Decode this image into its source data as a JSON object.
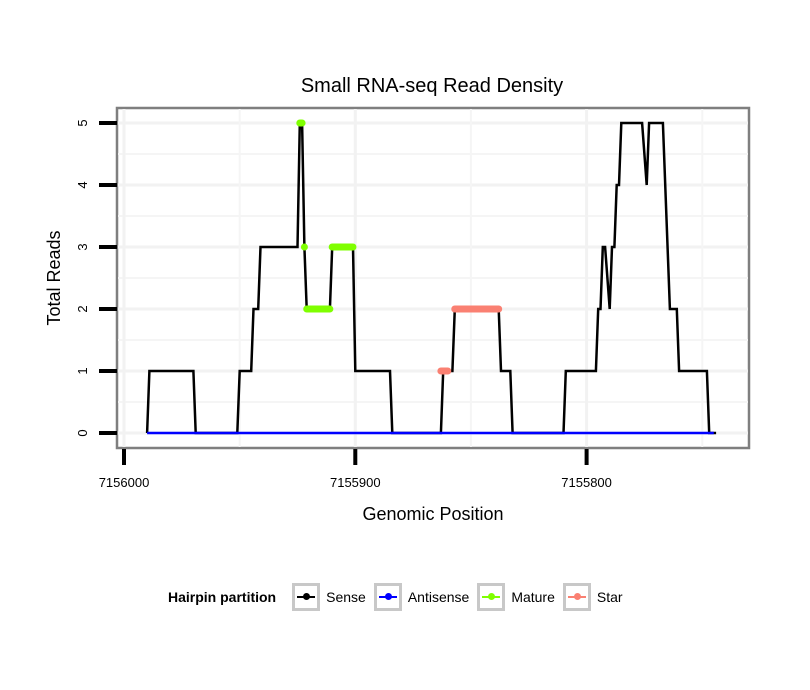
{
  "chart_data": {
    "type": "line",
    "title": "Small RNA-seq Read Density",
    "xlabel": "Genomic Position",
    "ylabel": "Total Reads",
    "x_reversed": true,
    "xlim": [
      7156003,
      7155728
    ],
    "ylim": [
      -0.2,
      5.2
    ],
    "xticks": [
      7156000,
      7155900,
      7155800
    ],
    "xtick_labels": [
      "7156000",
      "7155900",
      "7155800"
    ],
    "yticks": [
      0,
      1,
      2,
      3,
      4,
      5
    ],
    "ytick_labels": [
      "0",
      "1",
      "2",
      "3",
      "4",
      "5"
    ],
    "grid": true,
    "legend": {
      "title": "Hairpin partition",
      "placement": "bottom",
      "entries": [
        {
          "name": "Sense",
          "color": "#000000"
        },
        {
          "name": "Antisense",
          "color": "#0000ff"
        },
        {
          "name": "Mature",
          "color": "#7fff00"
        },
        {
          "name": "Star",
          "color": "#fa8072"
        }
      ]
    },
    "series": [
      {
        "name": "Sense",
        "color": "#000000",
        "x": [
          7155990,
          7155989,
          7155970,
          7155969,
          7155951,
          7155950,
          7155945,
          7155944,
          7155942,
          7155941,
          7155925,
          7155924,
          7155923,
          7155922,
          7155921,
          7155911,
          7155910,
          7155901,
          7155900,
          7155885,
          7155884,
          7155863,
          7155862,
          7155858,
          7155857,
          7155838,
          7155837,
          7155833,
          7155832,
          7155810,
          7155809,
          7155796,
          7155795,
          7155794,
          7155793,
          7155792,
          7155790,
          7155789,
          7155788,
          7155787,
          7155786,
          7155785,
          7155776,
          7155774,
          7155773,
          7155767,
          7155764,
          7155761,
          7155760,
          7155748,
          7155747,
          7155744
        ],
        "y": [
          0,
          1,
          1,
          0,
          0,
          1,
          1,
          2,
          2,
          3,
          3,
          5,
          5,
          3,
          2,
          2,
          3,
          3,
          1,
          1,
          0,
          0,
          1,
          1,
          2,
          2,
          1,
          1,
          0,
          0,
          1,
          1,
          2,
          2,
          3,
          3,
          2,
          3,
          3,
          4,
          4,
          5,
          5,
          4,
          5,
          5,
          2,
          2,
          1,
          1,
          0,
          0
        ]
      },
      {
        "name": "Antisense",
        "color": "#0000ff",
        "x": [
          7155990,
          7155745
        ],
        "y": [
          0,
          0
        ]
      },
      {
        "name": "Mature",
        "color": "#7fff00",
        "segments": [
          {
            "x": [
              7155924,
              7155923
            ],
            "y": [
              5,
              5
            ]
          },
          {
            "x": [
              7155922,
              7155922
            ],
            "y": [
              3,
              3
            ]
          },
          {
            "x": [
              7155921,
              7155911
            ],
            "y": [
              2,
              2
            ]
          },
          {
            "x": [
              7155910,
              7155901
            ],
            "y": [
              3,
              3
            ]
          }
        ]
      },
      {
        "name": "Star",
        "color": "#fa8072",
        "segments": [
          {
            "x": [
              7155863,
              7155860
            ],
            "y": [
              1,
              1
            ]
          },
          {
            "x": [
              7155857,
              7155838
            ],
            "y": [
              2,
              2
            ]
          }
        ]
      }
    ]
  }
}
